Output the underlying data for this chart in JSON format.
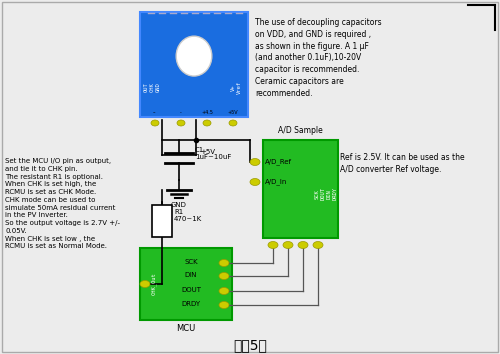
{
  "bg_color": "#ececec",
  "title": "图（5）",
  "top_annotation": "The use of decoupling capacitors\non VDD, and GND is required ,\nas shown in the figure. A 1 μF\n(and another 0.1uF),10-20V\ncapacitor is recommended.\nCeramic capacitors are\nrecommended.",
  "right_annotation": "Ref is 2.5V. It can be used as the\nA/D converter Ref voltage.",
  "left_annotation": "Set the MCU I/O pin as output,\nand tie it to CHK pin.\nThe resistant R1 is optional.\nWhen CHK is set high, the\nRCMU is set as CHK Mode.\nCHK mode can be used to\nsimulate 50mA residual current\nin the PV Inverter.\nSo the output voltage is 2.7V +/-\n0.05V.\nWhen CHK is set low , the\nRCMU is set as Normal Mode.",
  "sensor_color": "#1a6de0",
  "adc_color": "#22bb22",
  "mcu_color": "#22bb22",
  "pin_color": "#cccc00",
  "cap_label": "C1\n1uF~10uF",
  "res_label": "R1\n470~1K",
  "gnd_label": "GND",
  "vcc_label": "+5V",
  "ad_sample_label": "A/D Sample",
  "mcu_bottom_label": "MCU"
}
